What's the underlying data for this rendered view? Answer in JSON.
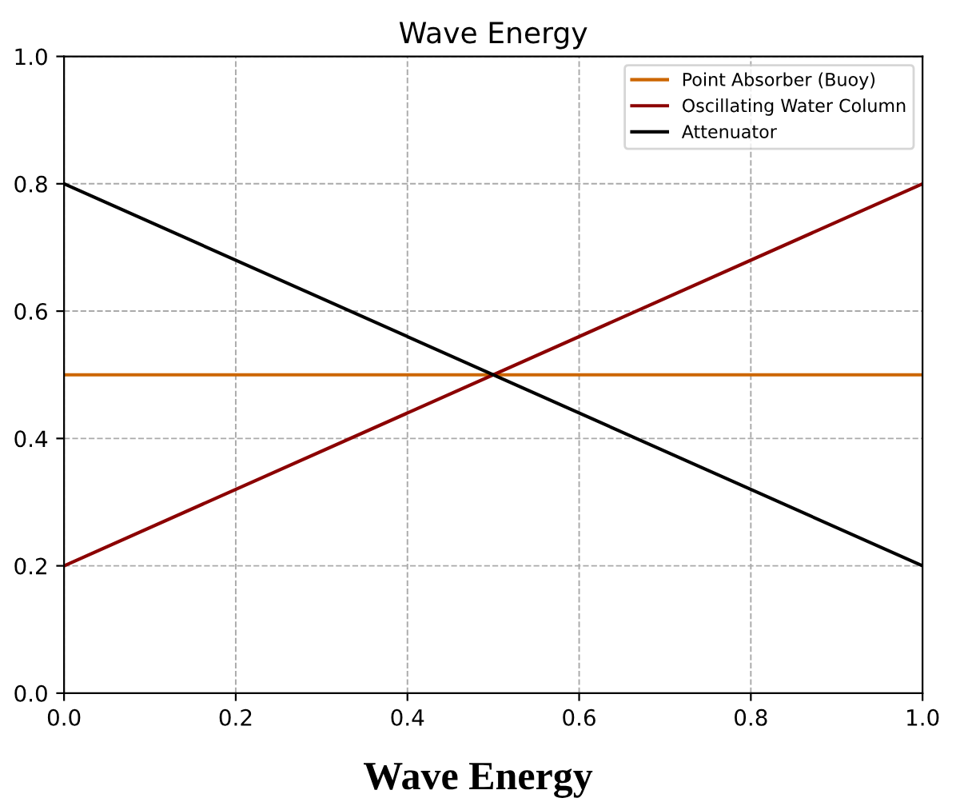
{
  "chart_data": {
    "type": "line",
    "title": "Wave Energy",
    "x": [
      0,
      1
    ],
    "series": [
      {
        "name": "Point Absorber (Buoy)",
        "color": "#cc6600",
        "values": [
          0.5,
          0.5
        ]
      },
      {
        "name": "Oscillating Water Column",
        "color": "#8b0000",
        "values": [
          0.2,
          0.8
        ]
      },
      {
        "name": "Attenuator",
        "color": "#000000",
        "values": [
          0.8,
          0.2
        ]
      }
    ],
    "xlim": [
      0,
      1
    ],
    "ylim": [
      0,
      1
    ],
    "xticks": [
      {
        "value": 0,
        "label": "0.0"
      },
      0.2,
      0.4,
      0.6,
      0.8,
      {
        "value": 1,
        "label": "1.0"
      }
    ],
    "yticks": [
      {
        "value": 0,
        "label": "0.0"
      },
      0.2,
      0.4,
      0.6,
      0.8,
      {
        "value": 1,
        "label": "1.0"
      }
    ],
    "grid": true,
    "legend": "top right",
    "marker": "none",
    "line_style": "solid",
    "annotations": [
      "Wave Energy"
    ]
  }
}
